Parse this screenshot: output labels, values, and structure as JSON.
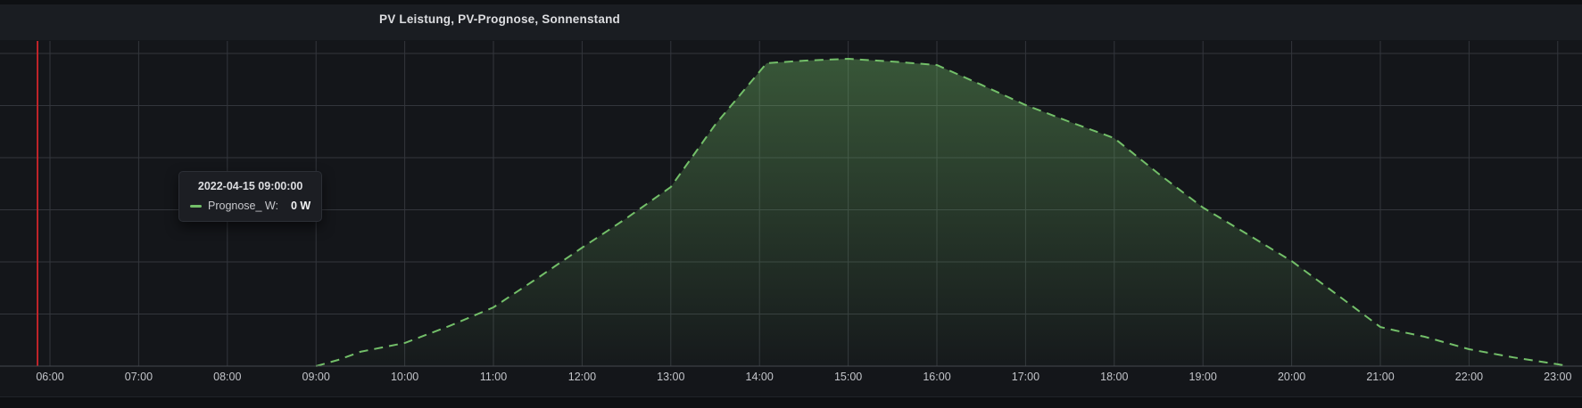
{
  "panel": {
    "title": "PV Leistung, PV-Prognose, Sonnenstand"
  },
  "tooltip": {
    "timestamp": "2022-04-15 09:00:00",
    "series": [
      {
        "label": "Prognose_ W:",
        "value": "0 W",
        "color": "#73bf69"
      }
    ]
  },
  "colors": {
    "series_green": "#73bf69",
    "annotation_red": "#d2252b",
    "gridline": "#33363c",
    "axis_line": "#45484e",
    "plot_background": "#14161a",
    "header_background": "#1a1d22"
  },
  "chart_data": {
    "type": "area",
    "title": "PV Leistung, PV-Prognose, Sonnenstand",
    "grid": true,
    "legend_position": "none",
    "x_axis": {
      "unit": "time",
      "start_hour": 6,
      "end_hour": 23,
      "tick_labels": [
        "06:00",
        "07:00",
        "08:00",
        "09:00",
        "10:00",
        "11:00",
        "12:00",
        "13:00",
        "14:00",
        "15:00",
        "16:00",
        "17:00",
        "18:00",
        "19:00",
        "20:00",
        "21:00",
        "22:00",
        "23:00"
      ]
    },
    "y_axis": {
      "labels_visible": false,
      "scale": "normalized_0_to_1_of_plot_height"
    },
    "annotations": [
      {
        "type": "vline",
        "hour": 5.86,
        "color": "#d2252b"
      }
    ],
    "series": [
      {
        "name": "Prognose_ W",
        "color": "#73bf69",
        "line_style": "dashed",
        "fill": "opacity-gradient",
        "points": [
          {
            "t": 9.0,
            "v": 0.0
          },
          {
            "t": 9.25,
            "v": 0.02
          },
          {
            "t": 9.5,
            "v": 0.046
          },
          {
            "t": 10.0,
            "v": 0.074
          },
          {
            "t": 10.5,
            "v": 0.128
          },
          {
            "t": 11.0,
            "v": 0.188
          },
          {
            "t": 11.5,
            "v": 0.282
          },
          {
            "t": 12.0,
            "v": 0.379
          },
          {
            "t": 12.5,
            "v": 0.473
          },
          {
            "t": 13.0,
            "v": 0.573
          },
          {
            "t": 13.5,
            "v": 0.772
          },
          {
            "t": 14.08,
            "v": 0.969
          },
          {
            "t": 14.5,
            "v": 0.977
          },
          {
            "t": 15.0,
            "v": 0.983
          },
          {
            "t": 15.5,
            "v": 0.974
          },
          {
            "t": 16.0,
            "v": 0.963
          },
          {
            "t": 16.5,
            "v": 0.9
          },
          {
            "t": 17.0,
            "v": 0.835
          },
          {
            "t": 17.5,
            "v": 0.781
          },
          {
            "t": 18.0,
            "v": 0.729
          },
          {
            "t": 18.5,
            "v": 0.615
          },
          {
            "t": 19.0,
            "v": 0.507
          },
          {
            "t": 19.5,
            "v": 0.422
          },
          {
            "t": 20.0,
            "v": 0.336
          },
          {
            "t": 20.5,
            "v": 0.231
          },
          {
            "t": 21.0,
            "v": 0.125
          },
          {
            "t": 21.17,
            "v": 0.114
          },
          {
            "t": 21.5,
            "v": 0.094
          },
          {
            "t": 22.0,
            "v": 0.054
          },
          {
            "t": 22.5,
            "v": 0.028
          },
          {
            "t": 23.0,
            "v": 0.006
          },
          {
            "t": 23.12,
            "v": 0.0
          }
        ]
      }
    ]
  }
}
